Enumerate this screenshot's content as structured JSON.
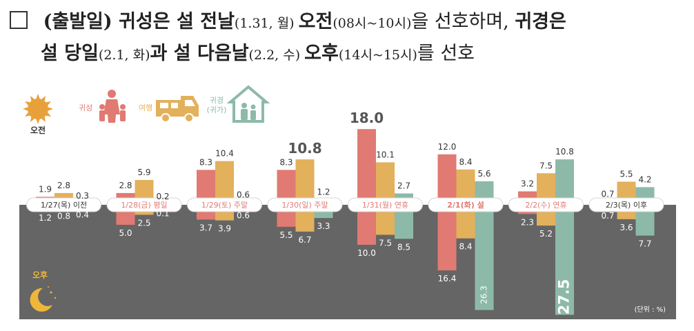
{
  "header": {
    "line1": [
      {
        "t": "(출발일) 귀성은 설 전날",
        "b": true
      },
      {
        "t": "(1.31, 월) ",
        "b": false,
        "s": true
      },
      {
        "t": "오전",
        "b": true
      },
      {
        "t": "(08시~10시)",
        "b": false,
        "s": true
      },
      {
        "t": "을 선호하며, ",
        "b": false
      },
      {
        "t": "귀경은",
        "b": true
      }
    ],
    "line2": [
      {
        "t": "설 당일",
        "b": true
      },
      {
        "t": "(2.1, 화)",
        "b": false,
        "s": true
      },
      {
        "t": "과 설 다음날",
        "b": true
      },
      {
        "t": "(2.2, 수) ",
        "b": false,
        "s": true
      },
      {
        "t": "오후",
        "b": true
      },
      {
        "t": "(14시~15시)",
        "b": false,
        "s": true
      },
      {
        "t": "를 선호",
        "b": false
      }
    ]
  },
  "legend": {
    "am": "오전",
    "pm": "오후",
    "home": "귀성",
    "travel": "여행",
    "return_line1": "귀경",
    "return_line2": "(귀가)",
    "unit": "(단위 : %)"
  },
  "colors": {
    "home": "#e07a72",
    "travel": "#e3b05c",
    "return": "#8dbaa8",
    "band": "#656565",
    "am_icon": "#e8a13a",
    "pm_icon": "#f0b63a",
    "pill_text": "#e07a72"
  },
  "chart_data": {
    "type": "bar",
    "title": "",
    "categories": [
      "1/27(목) 이전",
      "1/28(금) 평일",
      "1/29(토) 주말",
      "1/30(일) 주말",
      "1/31(월) 연휴",
      "2/1(화) 설",
      "2/2(수) 연휴",
      "2/3(목) 이후"
    ],
    "highlight_category": "2/1(화) 설",
    "series": [
      {
        "name": "귀성",
        "group": "오전",
        "values": [
          1.9,
          2.8,
          8.3,
          8.3,
          18.0,
          12.0,
          3.2,
          0.7
        ]
      },
      {
        "name": "여행",
        "group": "오전",
        "values": [
          2.8,
          5.9,
          10.4,
          10.8,
          10.1,
          8.4,
          7.5,
          5.5
        ]
      },
      {
        "name": "귀경(귀가)",
        "group": "오전",
        "values": [
          0.3,
          0.2,
          0.6,
          1.2,
          2.7,
          5.6,
          10.8,
          4.2
        ]
      },
      {
        "name": "귀성",
        "group": "오후",
        "values": [
          1.2,
          5.0,
          3.7,
          5.5,
          10.0,
          16.4,
          2.3,
          0.7
        ]
      },
      {
        "name": "여행",
        "group": "오후",
        "values": [
          0.8,
          2.5,
          3.9,
          6.7,
          7.5,
          8.4,
          5.2,
          3.6
        ]
      },
      {
        "name": "귀경(귀가)",
        "group": "오후",
        "values": [
          0.4,
          0.1,
          0.6,
          3.3,
          8.5,
          26.3,
          27.5,
          7.7
        ]
      }
    ],
    "emphasized_values": [
      "10.8",
      "18.0",
      "26.3",
      "27.5"
    ],
    "unit": "%"
  }
}
